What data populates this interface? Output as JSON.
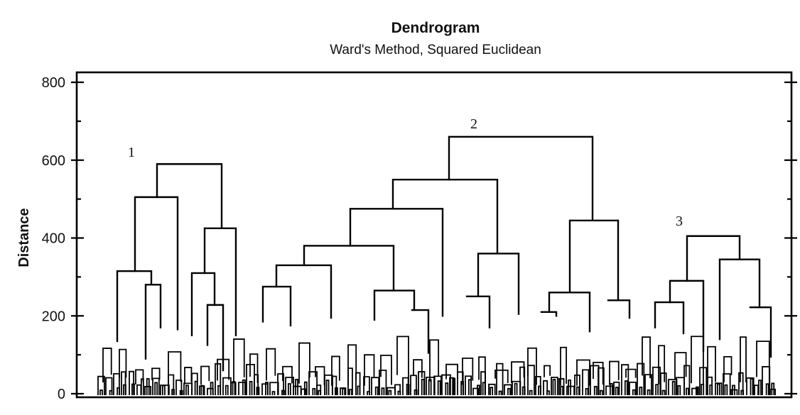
{
  "chart_data": {
    "type": "dendrogram",
    "title": "Dendrogram",
    "subtitle": "Ward's Method, Squared Euclidean",
    "xlabel": "",
    "ylabel": "Distance",
    "ylim": [
      0,
      800
    ],
    "yticks": [
      "0",
      "200",
      "400",
      "600",
      "800"
    ],
    "grid": false,
    "cluster_labels": [
      {
        "label": "1",
        "cluster": 1
      },
      {
        "label": "2",
        "cluster": 2
      },
      {
        "label": "3",
        "cluster": 3
      }
    ],
    "merges": [
      {
        "id": "c2_root",
        "cluster": 2,
        "height": 660
      },
      {
        "id": "c1_root",
        "cluster": 1,
        "height": 590
      },
      {
        "id": "c2_left",
        "cluster": 2,
        "height": 550
      },
      {
        "id": "c1_left",
        "cluster": 1,
        "height": 505
      },
      {
        "id": "c2_ll",
        "cluster": 2,
        "height": 475
      },
      {
        "id": "c2_right",
        "cluster": 2,
        "height": 445
      },
      {
        "id": "c1_right",
        "cluster": 1,
        "height": 425
      },
      {
        "id": "c3_root",
        "cluster": 3,
        "height": 405
      },
      {
        "id": "c2_lll",
        "cluster": 2,
        "height": 380
      },
      {
        "id": "c2_llr",
        "cluster": 2,
        "height": 360
      },
      {
        "id": "c3_right",
        "cluster": 3,
        "height": 345
      },
      {
        "id": "c2_llll",
        "cluster": 2,
        "height": 330
      },
      {
        "id": "c1_ll",
        "cluster": 1,
        "height": 315
      },
      {
        "id": "c1_rl",
        "cluster": 1,
        "height": 310
      },
      {
        "id": "c3_left",
        "cluster": 3,
        "height": 290
      },
      {
        "id": "c1_lr",
        "cluster": 1,
        "height": 280
      },
      {
        "id": "c2_a",
        "cluster": 2,
        "height": 275
      },
      {
        "id": "c2_b",
        "cluster": 2,
        "height": 265
      },
      {
        "id": "c2_c",
        "cluster": 2,
        "height": 260
      },
      {
        "id": "c2_d",
        "cluster": 2,
        "height": 250
      },
      {
        "id": "c2_e",
        "cluster": 2,
        "height": 240
      },
      {
        "id": "c3_a",
        "cluster": 3,
        "height": 235
      },
      {
        "id": "c1_rr",
        "cluster": 1,
        "height": 228
      },
      {
        "id": "c3_b",
        "cluster": 3,
        "height": 222
      },
      {
        "id": "c2_f",
        "cluster": 2,
        "height": 215
      },
      {
        "id": "c2_g",
        "cluster": 2,
        "height": 210
      }
    ]
  }
}
